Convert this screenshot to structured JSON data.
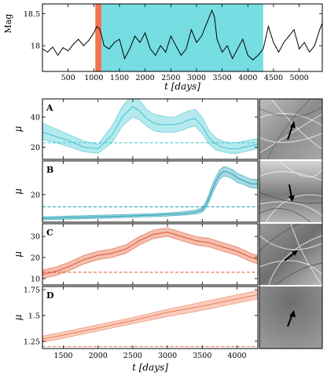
{
  "chart_data": [
    {
      "type": "line",
      "xlabel": "t [days]",
      "ylabel": "Mag",
      "xticks": [
        500,
        1000,
        1500,
        2000,
        2500,
        3000,
        3500,
        4000,
        4500,
        5000
      ],
      "yticks": [
        18.0,
        18.5
      ],
      "xlim": [
        0,
        5450
      ],
      "ylim": [
        18.65,
        17.6
      ],
      "y_inverted": true,
      "highlight_spans": [
        {
          "x0": 1030,
          "x1": 1150,
          "color": "#f4724f"
        },
        {
          "x0": 1150,
          "x1": 4300,
          "color": "#76dde2"
        }
      ],
      "series": [
        {
          "color": "#000000",
          "x": [
            0,
            100,
            200,
            300,
            400,
            500,
            600,
            700,
            800,
            900,
            1000,
            1060,
            1120,
            1200,
            1300,
            1400,
            1500,
            1600,
            1700,
            1800,
            1900,
            2000,
            2100,
            2200,
            2300,
            2400,
            2500,
            2600,
            2700,
            2800,
            2900,
            3000,
            3100,
            3200,
            3300,
            3350,
            3400,
            3500,
            3600,
            3700,
            3800,
            3900,
            4000,
            4100,
            4200,
            4300,
            4400,
            4500,
            4600,
            4700,
            4800,
            4900,
            5000,
            5100,
            5200,
            5300,
            5400,
            5450
          ],
          "y": [
            17.95,
            17.9,
            17.98,
            17.85,
            17.97,
            17.92,
            18.02,
            18.1,
            18.0,
            18.08,
            18.2,
            18.3,
            18.25,
            18.0,
            17.95,
            18.05,
            18.1,
            17.8,
            17.95,
            18.15,
            18.05,
            18.2,
            17.95,
            17.85,
            18.0,
            17.9,
            18.15,
            18.0,
            17.85,
            17.95,
            18.25,
            18.05,
            18.15,
            18.35,
            18.55,
            18.45,
            18.1,
            17.9,
            18.0,
            17.8,
            17.95,
            18.1,
            17.85,
            17.78,
            17.85,
            17.95,
            18.3,
            18.05,
            17.9,
            18.05,
            18.15,
            18.25,
            17.95,
            18.05,
            17.9,
            18.0,
            18.25,
            18.35
          ]
        }
      ]
    },
    {
      "type": "area",
      "panel_label": "A",
      "ylabel": "μ",
      "yticks": [
        20,
        40
      ],
      "ylim": [
        12,
        52
      ],
      "xlim": [
        1200,
        4300
      ],
      "threshold": 23,
      "color": "#3cc6cf",
      "image_panel": "caustic-map-A",
      "x": [
        1200,
        1400,
        1600,
        1800,
        2000,
        2200,
        2350,
        2500,
        2600,
        2700,
        2800,
        2900,
        3000,
        3100,
        3200,
        3300,
        3400,
        3500,
        3600,
        3700,
        3800,
        3900,
        4000,
        4100,
        4200,
        4300
      ],
      "y": [
        30,
        27,
        24,
        20,
        19,
        28,
        40,
        47,
        44,
        39,
        36,
        35,
        35,
        35,
        36,
        38,
        39,
        34,
        26,
        22,
        20,
        19,
        19,
        20,
        21,
        22
      ],
      "y_low": [
        25,
        23,
        20,
        17,
        16,
        23,
        34,
        40,
        38,
        34,
        31,
        30,
        30,
        30,
        31,
        33,
        34,
        29,
        22,
        18,
        17,
        16,
        16,
        17,
        18,
        19
      ],
      "y_high": [
        36,
        32,
        28,
        24,
        22,
        34,
        47,
        55,
        51,
        45,
        42,
        41,
        40,
        40,
        42,
        44,
        45,
        40,
        31,
        26,
        24,
        23,
        23,
        24,
        25,
        26
      ]
    },
    {
      "type": "area",
      "panel_label": "B",
      "ylabel": "μ",
      "yticks": [
        20
      ],
      "ylim": [
        2,
        42
      ],
      "xlim": [
        1200,
        4300
      ],
      "threshold": 12,
      "color": "#1a9db3",
      "image_panel": "caustic-map-B",
      "x": [
        1200,
        1400,
        1600,
        1800,
        2000,
        2200,
        2400,
        2600,
        2800,
        3000,
        3200,
        3400,
        3500,
        3550,
        3600,
        3650,
        3700,
        3750,
        3800,
        3850,
        3900,
        3950,
        4000,
        4100,
        4200,
        4300
      ],
      "y": [
        4.5,
        4.7,
        5,
        5.2,
        5.5,
        5.7,
        6,
        6.3,
        6.6,
        7,
        7.5,
        8.5,
        10,
        13,
        18,
        24,
        29,
        33,
        35,
        35,
        34,
        33,
        31,
        29,
        27,
        27
      ],
      "y_low": [
        3.5,
        3.7,
        4,
        4.2,
        4.5,
        4.7,
        5,
        5.3,
        5.6,
        6,
        6.5,
        7.3,
        8.5,
        11,
        15.5,
        21,
        26,
        30,
        32,
        32,
        31,
        30,
        28,
        26.5,
        24.5,
        24
      ],
      "y_high": [
        5.5,
        5.7,
        6,
        6.2,
        6.5,
        6.7,
        7,
        7.3,
        7.6,
        8,
        8.7,
        9.8,
        11.5,
        15,
        20.5,
        27,
        32,
        36,
        38,
        38,
        37,
        36,
        34,
        32,
        30,
        30
      ]
    },
    {
      "type": "area",
      "panel_label": "C",
      "ylabel": "μ",
      "yticks": [
        10,
        20,
        30
      ],
      "ylim": [
        7,
        36
      ],
      "xlim": [
        1200,
        4300
      ],
      "threshold": 13,
      "color": "#e0552c",
      "image_panel": "caustic-map-C",
      "x": [
        1200,
        1400,
        1600,
        1800,
        2000,
        2200,
        2400,
        2600,
        2800,
        3000,
        3200,
        3400,
        3600,
        3800,
        4000,
        4200,
        4300
      ],
      "y": [
        12,
        13.5,
        16,
        19,
        21,
        22,
        24,
        28,
        31,
        32,
        30,
        28,
        27,
        25,
        23,
        20,
        19
      ],
      "y_low": [
        10,
        11.5,
        14,
        17,
        19,
        20,
        22,
        26,
        29,
        30,
        28,
        26,
        25,
        23,
        21,
        18,
        17
      ],
      "y_high": [
        14,
        15.5,
        18,
        21,
        23,
        24,
        26,
        30,
        33,
        34,
        32,
        30,
        29,
        27,
        25,
        22,
        21
      ]
    },
    {
      "type": "area",
      "panel_label": "D",
      "ylabel": "μ",
      "xlabel": "t [days]",
      "yticks": [
        1.25,
        1.5,
        1.75
      ],
      "xticks": [
        1500,
        2000,
        2500,
        3000,
        3500,
        4000
      ],
      "ylim": [
        1.18,
        1.78
      ],
      "xlim": [
        1200,
        4300
      ],
      "threshold": 1.2,
      "color": "#ee7a54",
      "image_panel": "caustic-map-D",
      "x": [
        1200,
        1500,
        2000,
        2500,
        3000,
        3500,
        4000,
        4300
      ],
      "y": [
        1.27,
        1.31,
        1.38,
        1.45,
        1.53,
        1.59,
        1.66,
        1.7
      ],
      "y_low": [
        1.24,
        1.28,
        1.35,
        1.42,
        1.49,
        1.55,
        1.62,
        1.66
      ],
      "y_high": [
        1.3,
        1.34,
        1.41,
        1.48,
        1.56,
        1.63,
        1.7,
        1.74
      ]
    }
  ]
}
